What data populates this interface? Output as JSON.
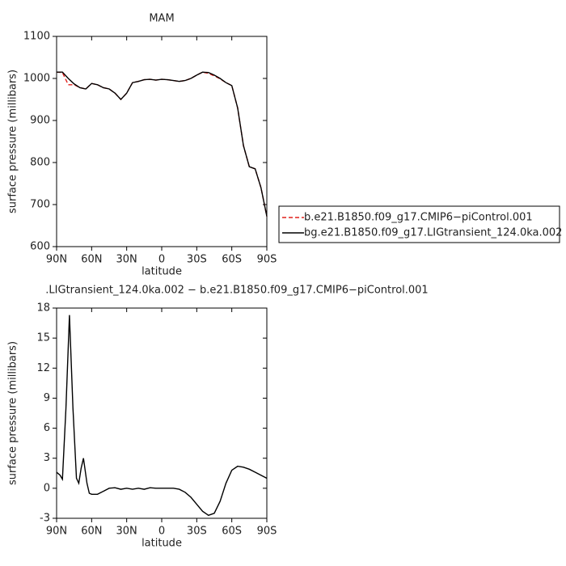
{
  "chart_data": [
    {
      "type": "line",
      "title": "MAM",
      "xlabel": "latitude",
      "ylabel": "surface pressure (millibars)",
      "x": [
        90,
        85,
        80,
        75,
        70,
        65,
        60,
        55,
        50,
        45,
        40,
        35,
        30,
        25,
        20,
        15,
        10,
        5,
        0,
        -5,
        -10,
        -15,
        -20,
        -25,
        -30,
        -35,
        -40,
        -45,
        -50,
        -55,
        -60,
        -65,
        -70,
        -75,
        -80,
        -85,
        -90
      ],
      "series": [
        {
          "name": "b.e21.B1850.f09_g17.CMIP6−piControl.001",
          "color": "#e0201b",
          "style": "dashed",
          "values": [
            1015,
            1014,
            985,
            985,
            978,
            975,
            988,
            985,
            978,
            975,
            965,
            950,
            965,
            990,
            993,
            997,
            998,
            996,
            998,
            997,
            995,
            993,
            995,
            1000,
            1008,
            1015,
            1012,
            1006,
            999,
            990,
            983,
            930,
            840,
            790,
            785,
            740,
            672
          ]
        },
        {
          "name": "bg.e21.B1850.f09_g17.LIGtransient_124.0ka.002",
          "color": "#000000",
          "style": "solid",
          "values": [
            1015,
            1015,
            1000,
            987,
            978,
            975,
            988,
            985,
            978,
            975,
            965,
            950,
            965,
            990,
            993,
            997,
            998,
            996,
            998,
            997,
            995,
            993,
            995,
            1000,
            1008,
            1015,
            1014,
            1008,
            1000,
            990,
            983,
            930,
            840,
            790,
            785,
            740,
            672
          ]
        }
      ],
      "xlim": [
        90,
        -90
      ],
      "xticks": [
        {
          "value": 90,
          "label": "90N"
        },
        {
          "value": 60,
          "label": "60N"
        },
        {
          "value": 30,
          "label": "30N"
        },
        0,
        {
          "value": -30,
          "label": "30S"
        },
        {
          "value": -60,
          "label": "60S"
        },
        {
          "value": -90,
          "label": "90S"
        }
      ],
      "ylim": [
        600,
        1100
      ],
      "yticks": [
        600,
        700,
        800,
        900,
        1000,
        1100
      ],
      "legend": "right"
    },
    {
      "type": "line",
      "title": ".LIGtransient_124.0ka.002 − b.e21.B1850.f09_g17.CMIP6−piControl.001",
      "xlabel": "latitude",
      "ylabel": "surface pressure (millibars)",
      "x": [
        90,
        87,
        85,
        82,
        79,
        76,
        73,
        71,
        69,
        67,
        64,
        62,
        60,
        55,
        50,
        45,
        40,
        35,
        30,
        25,
        20,
        15,
        10,
        5,
        0,
        -5,
        -10,
        -15,
        -20,
        -25,
        -30,
        -35,
        -40,
        -45,
        -50,
        -55,
        -60,
        -65,
        -70,
        -75,
        -80,
        -85,
        -90
      ],
      "series": [
        {
          "color": "#000000",
          "style": "solid",
          "values": [
            1.6,
            1.3,
            0.9,
            8,
            17.3,
            8,
            1,
            0.5,
            2,
            3,
            0.5,
            -0.5,
            -0.6,
            -0.6,
            -0.3,
            0,
            0.05,
            -0.1,
            0,
            -0.1,
            0,
            -0.1,
            0.05,
            0,
            0,
            0,
            0,
            -0.1,
            -0.4,
            -0.9,
            -1.6,
            -2.3,
            -2.7,
            -2.5,
            -1.3,
            0.5,
            1.8,
            2.2,
            2.1,
            1.9,
            1.6,
            1.3,
            1.0
          ]
        }
      ],
      "xlim": [
        90,
        -90
      ],
      "xticks": [
        {
          "value": 90,
          "label": "90N"
        },
        {
          "value": 60,
          "label": "60N"
        },
        {
          "value": 30,
          "label": "30N"
        },
        0,
        {
          "value": -30,
          "label": "30S"
        },
        {
          "value": -60,
          "label": "60S"
        },
        {
          "value": -90,
          "label": "90S"
        }
      ],
      "ylim": [
        -3,
        18
      ],
      "yticks": [
        -3,
        0,
        3,
        6,
        9,
        12,
        15,
        18
      ]
    }
  ]
}
